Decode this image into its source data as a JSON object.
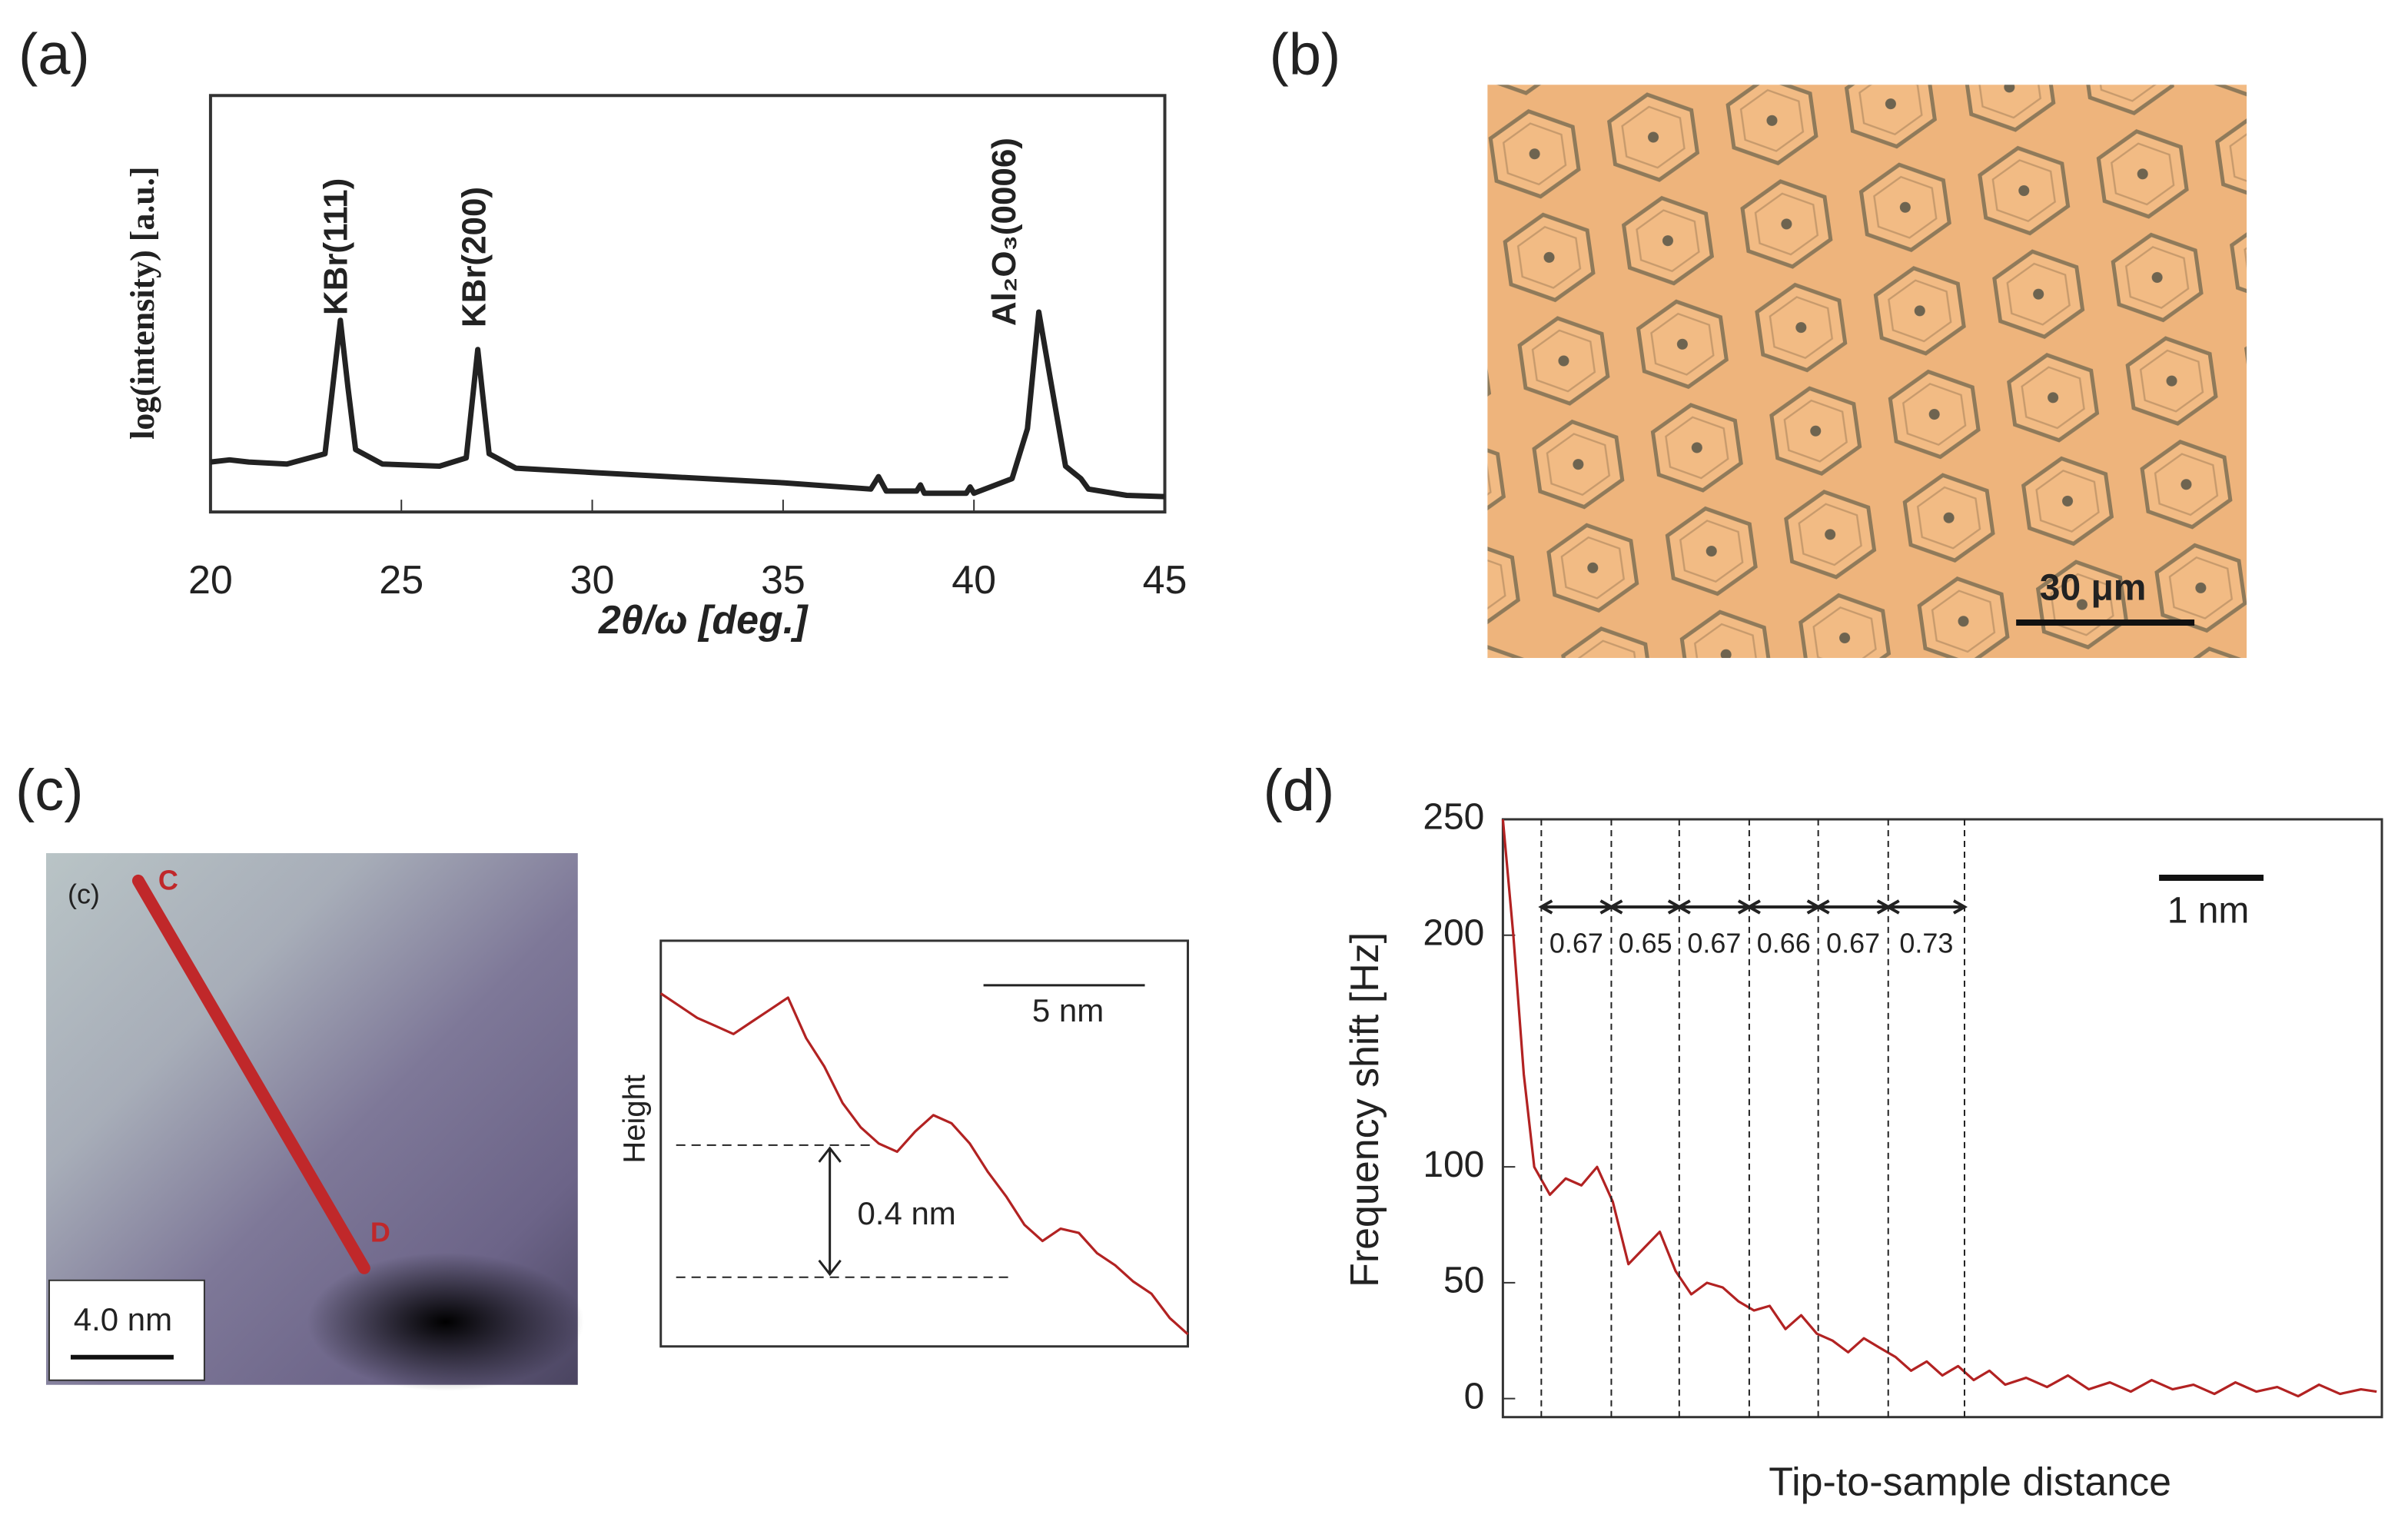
{
  "chart_data": [
    {
      "type": "line",
      "panel_label": "(a)",
      "xlabel": "2θ/ω [deg.]",
      "ylabel": "log(intensity) [a.u.]",
      "color": "#222222",
      "annotations": [
        "KBr(111)",
        "KBr(200)",
        "Al₂O₃(0006)"
      ],
      "x": [
        20,
        20.5,
        21,
        22,
        23,
        23.2,
        23.4,
        23.6,
        23.8,
        24.5,
        26,
        26.7,
        27.0,
        27.3,
        28,
        30,
        32,
        35,
        37.3,
        37.5,
        37.7,
        38.5,
        38.6,
        38.7,
        39.8,
        39.9,
        40,
        41,
        41.4,
        41.7,
        42,
        42.4,
        42.8,
        43,
        44,
        45
      ],
      "values": [
        1.2,
        1.25,
        1.2,
        1.15,
        1.4,
        3.0,
        4.6,
        3.0,
        1.5,
        1.15,
        1.1,
        1.3,
        3.9,
        1.4,
        1.05,
        0.95,
        0.85,
        0.7,
        0.55,
        0.85,
        0.5,
        0.5,
        0.65,
        0.45,
        0.45,
        0.6,
        0.45,
        0.8,
        2.0,
        4.8,
        3.2,
        1.1,
        0.8,
        0.55,
        0.4,
        0.37
      ],
      "xlim": [
        20,
        45
      ],
      "ylim": [
        0,
        10
      ],
      "xticks": [
        20,
        25,
        30,
        35,
        40,
        45
      ]
    },
    {
      "type": "line",
      "ylabel": "Height",
      "color": "#b22222",
      "annotations": [
        "5 nm",
        "0.4 nm"
      ],
      "values": [
        8.7,
        8.4,
        8.1,
        7.9,
        7.7,
        8.0,
        8.3,
        8.6,
        7.6,
        6.9,
        6.0,
        5.4,
        5.0,
        4.8,
        5.3,
        5.7,
        5.5,
        5.0,
        4.3,
        3.7,
        3.0,
        2.6,
        2.9,
        2.8,
        2.3,
        2.0,
        1.6,
        1.3,
        0.7,
        0.3
      ],
      "ylim": [
        0,
        10
      ]
    },
    {
      "type": "line",
      "panel_label": "(d)",
      "xlabel": "Tip-to-sample distance",
      "ylabel": "Frequency shift [Hz]",
      "color": "#b22222",
      "x": [
        0.0,
        0.1,
        0.2,
        0.3,
        0.45,
        0.6,
        0.75,
        0.9,
        1.05,
        1.2,
        1.35,
        1.5,
        1.65,
        1.8,
        1.95,
        2.1,
        2.25,
        2.4,
        2.55,
        2.7,
        2.85,
        3.0,
        3.15,
        3.3,
        3.45,
        3.6,
        3.75,
        3.9,
        4.05,
        4.2,
        4.35,
        4.5,
        4.65,
        4.8,
        5.0,
        5.2,
        5.4,
        5.6,
        5.8,
        6.0,
        6.2,
        6.4,
        6.6,
        6.8,
        7.0,
        7.2,
        7.4,
        7.6,
        7.8,
        8.0,
        8.2,
        8.35
      ],
      "values": [
        250,
        200,
        140,
        100,
        88,
        95,
        92,
        100,
        85,
        58,
        65,
        72,
        55,
        45,
        50,
        48,
        42,
        38,
        40,
        30,
        36,
        28,
        25,
        20,
        26,
        22,
        18,
        12,
        16,
        10,
        14,
        8,
        12,
        6,
        9,
        5,
        10,
        4,
        7,
        3,
        8,
        4,
        6,
        2,
        7,
        3,
        5,
        1,
        6,
        2,
        4,
        3
      ],
      "xlim": [
        0,
        8.4
      ],
      "ylim": [
        -8,
        250
      ],
      "yticks": [
        0,
        50,
        100,
        200,
        250
      ],
      "spacings": [
        0.67,
        0.65,
        0.67,
        0.66,
        0.67,
        0.73
      ],
      "scale_label": "1 nm"
    }
  ],
  "images": [
    {
      "panel_label": "(b)",
      "scale_label": "30 μm"
    },
    {
      "panel_label": "(c)",
      "inset_label": "(c)",
      "point_labels": [
        "C",
        "D"
      ],
      "scale_label": "4.0 nm"
    }
  ]
}
